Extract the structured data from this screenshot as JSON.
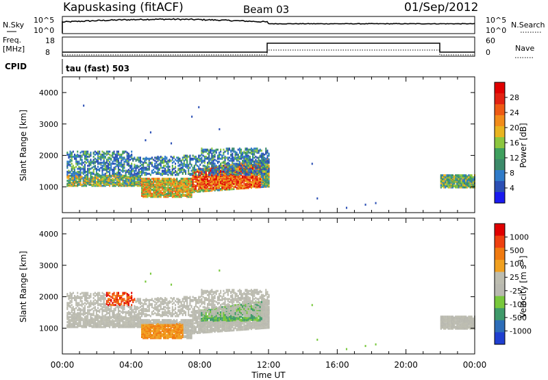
{
  "header": {
    "station": "Kapuskasing (fitACF)",
    "beam": "Beam 03",
    "date": "01/Sep/2012"
  },
  "strip_labels": {
    "nsky": "N.Sky",
    "nsearch": "N.Search",
    "freq": "Freq.",
    "freq_unit": "[MHz]",
    "nave": "Nave",
    "cpid": "CPID",
    "cpid_value": "tau (fast) 503",
    "left_top_ticks": [
      "10^5",
      "10^0"
    ],
    "right_top_ticks": [
      "10^5",
      "10^0"
    ],
    "left_freq_ticks": [
      "18",
      "8"
    ],
    "right_nave_ticks": [
      "60",
      "0"
    ]
  },
  "chart_data": [
    {
      "type": "heatmap",
      "name": "power",
      "ylabel": "Slant Range [km]",
      "xlabel": "Time UT",
      "xlim": [
        0,
        24
      ],
      "ylim": [
        180,
        4500
      ],
      "yticks": [
        1000,
        2000,
        3000,
        4000
      ],
      "xticklabels": [
        "00:00",
        "04:00",
        "08:00",
        "12:00",
        "16:00",
        "20:00",
        "00:00"
      ],
      "colorbar": {
        "label": "Power [dB]",
        "ticks": [
          "28",
          "24",
          "20",
          "16",
          "12",
          "8",
          "4"
        ],
        "colors": [
          "#1a1af0",
          "#2b4fb5",
          "#2f7bc9",
          "#3c8a6a",
          "#3fa05e",
          "#8cc63f",
          "#e8b420",
          "#f28c1a",
          "#ee5a14",
          "#e22212",
          "#e00000"
        ]
      },
      "regions": [
        {
          "t0": 0.3,
          "t1": 12.0,
          "r0": 1000,
          "r1": 2100,
          "level": "mixed"
        },
        {
          "t0": 22.0,
          "t1": 24.0,
          "r0": 950,
          "r1": 1350,
          "level": "mixed"
        }
      ]
    },
    {
      "type": "heatmap",
      "name": "velocity",
      "ylabel": "Slant Range [km]",
      "xlabel": "Time UT",
      "xlim": [
        0,
        24
      ],
      "ylim": [
        180,
        4500
      ],
      "yticks": [
        1000,
        2000,
        3000,
        4000
      ],
      "xticklabels": [
        "00:00",
        "04:00",
        "08:00",
        "12:00",
        "16:00",
        "20:00",
        "00:00"
      ],
      "colorbar": {
        "label": "Velocity [m s^-1]",
        "ticks": [
          "1000",
          "500",
          "100",
          "25",
          "-25",
          "-100",
          "-500",
          "-1000"
        ],
        "colors": [
          "#1f3fd0",
          "#2d6db8",
          "#3f9a6a",
          "#78c83c",
          "#b9b9b0",
          "#bdbdb0",
          "#f0a020",
          "#f07a10",
          "#ee4010",
          "#e00000"
        ]
      }
    }
  ]
}
